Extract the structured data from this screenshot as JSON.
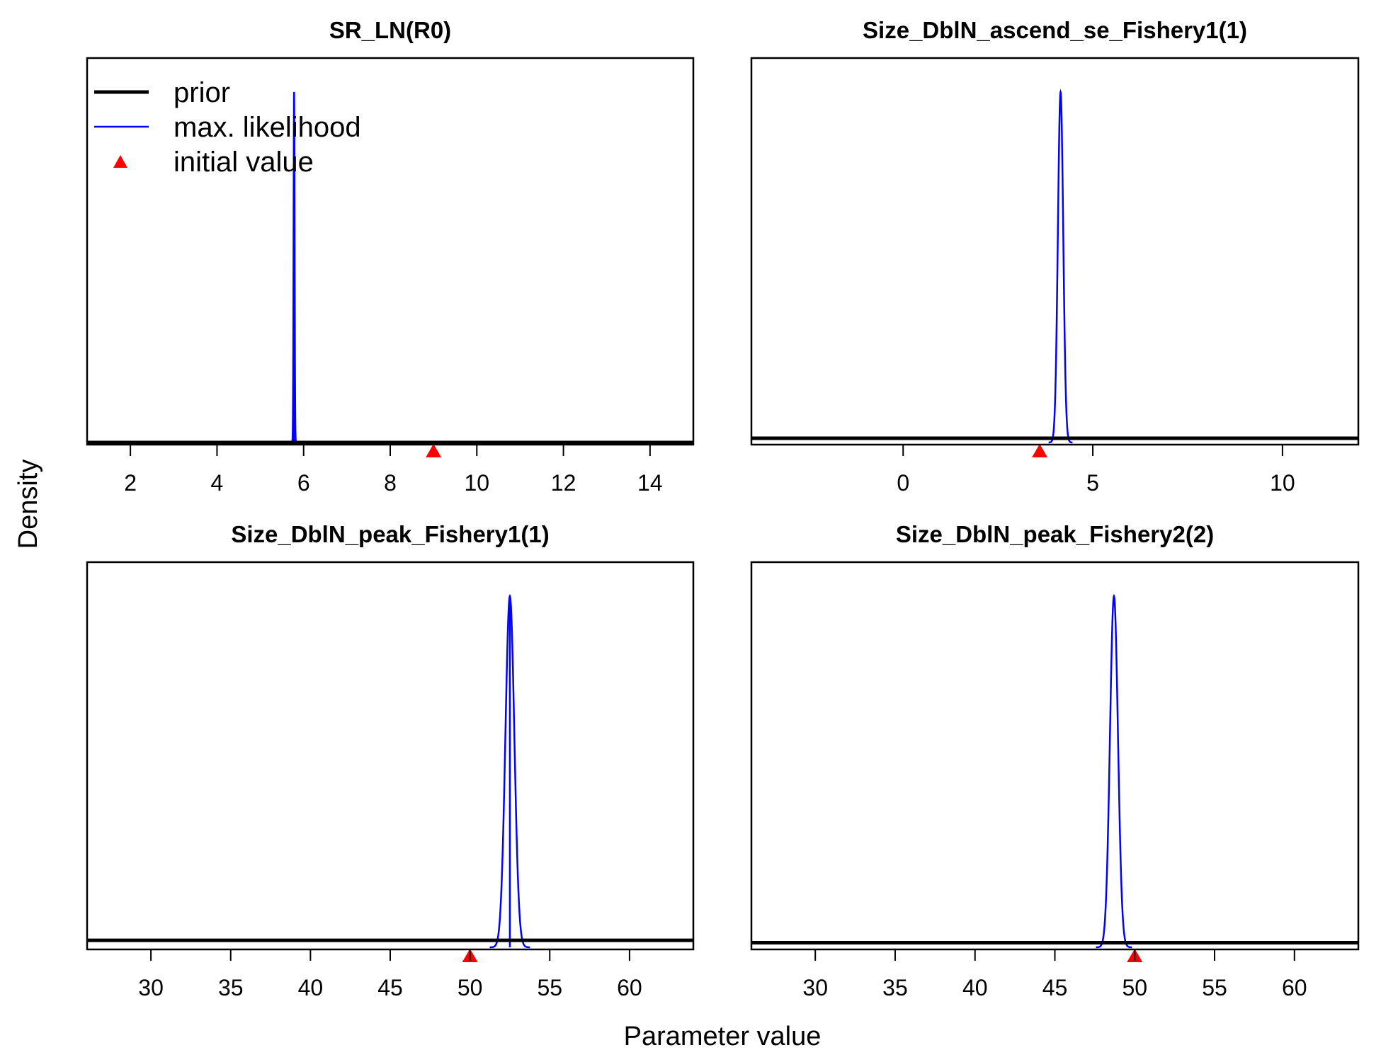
{
  "figure": {
    "ylabel": "Density",
    "xlabel": "Parameter value"
  },
  "legend": {
    "placement": "top-left of first panel",
    "entries": [
      {
        "label": "prior",
        "style": "thick-line",
        "color": "#000000"
      },
      {
        "label": "max. likelihood",
        "style": "line",
        "color": "#0000ff"
      },
      {
        "label": "initial value",
        "style": "triangle",
        "color": "#ff0000"
      }
    ]
  },
  "chart_data": [
    {
      "type": "line",
      "title": "SR_LN(R0)",
      "xlim": [
        1,
        15
      ],
      "xticks": [
        2,
        4,
        6,
        8,
        10,
        12,
        14
      ],
      "prior_level": 0.0,
      "mle": {
        "mean": 5.78,
        "sd": 0.012
      },
      "initial_value": 9,
      "mle_line": true
    },
    {
      "type": "line",
      "title": "Size_DblN_ascend_se_Fishery1(1)",
      "xlim": [
        -4,
        12
      ],
      "xticks": [
        0,
        5,
        10
      ],
      "prior_level": 0.012,
      "mle": {
        "mean": 4.15,
        "sd": 0.07
      },
      "initial_value": 3.6,
      "mle_line": false
    },
    {
      "type": "line",
      "title": "Size_DblN_peak_Fishery1(1)",
      "xlim": [
        26,
        64
      ],
      "xticks": [
        30,
        35,
        40,
        45,
        50,
        55,
        60
      ],
      "prior_level": 0.02,
      "mle": {
        "mean": 52.5,
        "sd": 0.28
      },
      "initial_value": 50,
      "mle_line": true
    },
    {
      "type": "line",
      "title": "Size_DblN_peak_Fishery2(2)",
      "xlim": [
        26,
        64
      ],
      "xticks": [
        30,
        35,
        40,
        45,
        50,
        55,
        60
      ],
      "prior_level": 0.013,
      "mle": {
        "mean": 48.7,
        "sd": 0.25
      },
      "initial_value": 50,
      "mle_line": false
    }
  ]
}
